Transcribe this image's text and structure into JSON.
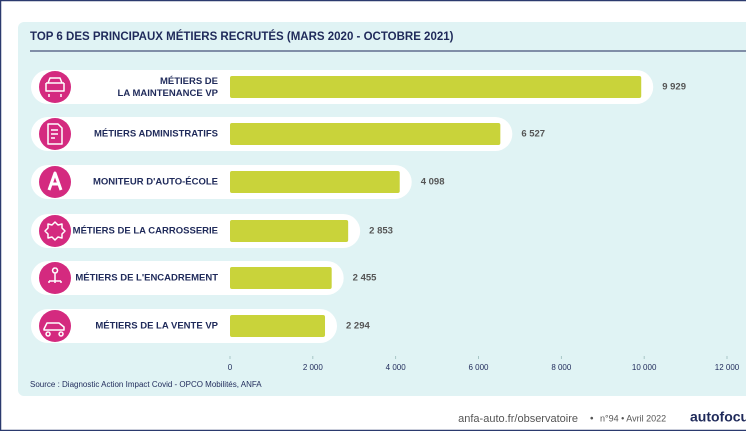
{
  "chart_data": {
    "type": "barh",
    "title": "TOP 6 DES PRINCIPAUX MÉTIERS RECRUTÉS (MARS 2020 - OCTOBRE 2021)",
    "categories": [
      [
        "MÉTIERS DE",
        "LA MAINTENANCE VP"
      ],
      "MÉTIERS ADMINISTRATIFS",
      "MONITEUR D'AUTO-ÉCOLE",
      "MÉTIERS DE LA CARROSSERIE",
      "MÉTIERS DE L'ENCADREMENT",
      "MÉTIERS DE LA VENTE VP"
    ],
    "values": [
      9929,
      6527,
      4098,
      2853,
      2455,
      2294
    ],
    "value_labels": [
      "9 929",
      "6 527",
      "4 098",
      "2 853",
      "2 455",
      "2 294"
    ],
    "color": "#c9d33a",
    "xlim": [
      0,
      12000
    ],
    "xticks": [
      0,
      {
        "value": 2000,
        "label": "2 000"
      },
      {
        "value": 4000,
        "label": "4 000"
      },
      {
        "value": 6000,
        "label": "6 000"
      },
      {
        "value": 8000,
        "label": "8 000"
      },
      {
        "value": 10000,
        "label": "10 000"
      },
      {
        "value": 12000,
        "label": "12 000"
      }
    ],
    "grid": false,
    "source": "Source : Diagnostic Action Impact Covid - OPCO Mobilités, ANFA",
    "footer": {
      "site": "anfa-auto.fr/observatoire",
      "issue": "n°94 • Avril 2022",
      "brand": "autofocus"
    }
  }
}
